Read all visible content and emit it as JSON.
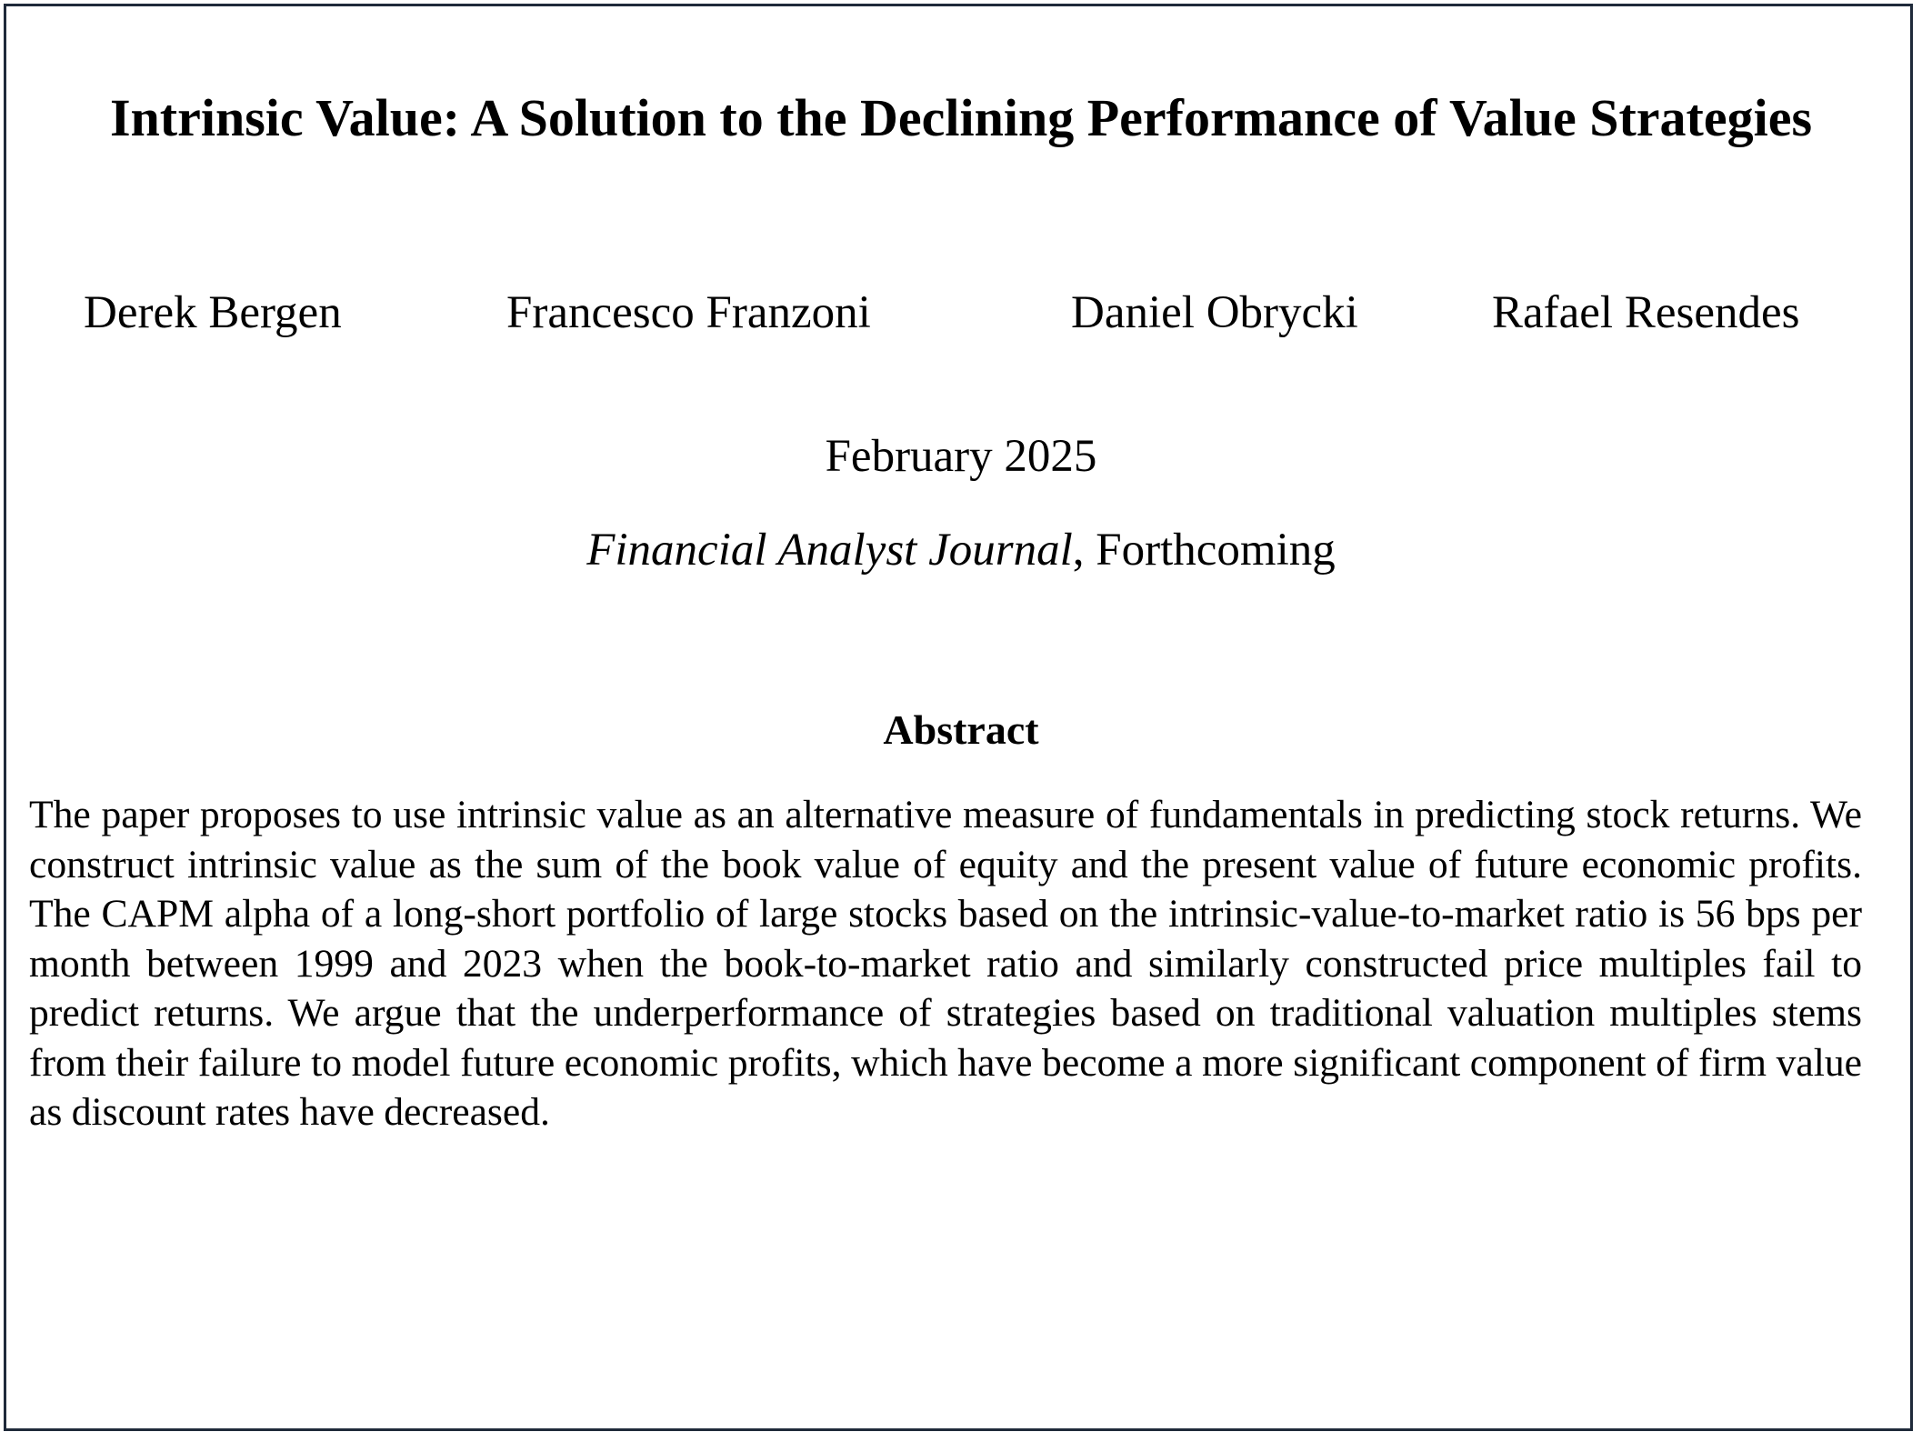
{
  "paper": {
    "title": "Intrinsic Value: A Solution to the Declining Performance of Value Strategies",
    "authors": [
      "Derek Bergen",
      "Francesco Franzoni",
      "Daniel Obrycki",
      "Rafael Resendes"
    ],
    "date": "February 2025",
    "journal": "Financial Analyst Journal",
    "status": ", Forthcoming",
    "abstract_heading": "Abstract",
    "abstract_text": "The paper proposes to use intrinsic value as an alternative measure of fundamentals in predicting stock returns. We construct intrinsic value as the sum of the book value of equity and the present value of future economic profits. The CAPM alpha of a long-short portfolio of large stocks based on the intrinsic-value-to-market ratio is 56 bps per month between 1999 and 2023 when the book-to-market ratio and similarly constructed price multiples fail to predict returns. We argue that the underperformance of strategies based on traditional valuation multiples stems from their failure to model future economic profits, which have become a more significant component of firm value as discount rates have decreased."
  },
  "colors": {
    "border": "#1f2a3a",
    "text": "#000000",
    "background": "#ffffff"
  }
}
